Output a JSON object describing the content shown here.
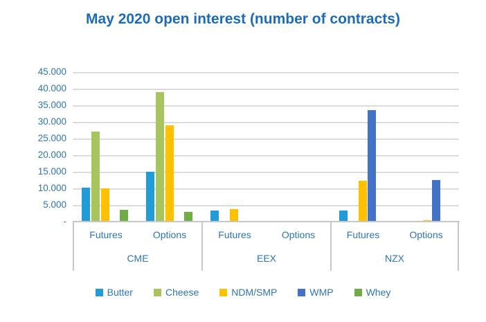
{
  "title": "May 2020 open interest (number of contracts)",
  "colors": {
    "title_text": "#1C6BB8",
    "axis_text": "#2E74B6",
    "gridline": "#DBDBDB",
    "axis_line": "#C6C6C6"
  },
  "chart_data": {
    "type": "bar",
    "title": "May 2020 open interest (number of contracts)",
    "xlabel": "",
    "ylabel": "",
    "ylim": [
      0,
      45000
    ],
    "ytick_step": 5000,
    "ytick_labels": [
      "45.000",
      "40.000",
      "35.000",
      "30.000",
      "25.000",
      "20.000",
      "15.000",
      "10.000",
      "5.000",
      "-"
    ],
    "grid": true,
    "legend_position": "bottom",
    "series": [
      {
        "name": "Butter",
        "color": "#219CD8"
      },
      {
        "name": "Cheese",
        "color": "#A8C45D"
      },
      {
        "name": "NDM/SMP",
        "color": "#FFC000"
      },
      {
        "name": "WMP",
        "color": "#4472C4"
      },
      {
        "name": "Whey",
        "color": "#70AD47"
      }
    ],
    "groups": [
      {
        "label": "CME",
        "subgroups": [
          {
            "label": "Futures",
            "values": [
              10300,
              27100,
              10100,
              0,
              3600
            ]
          },
          {
            "label": "Options",
            "values": [
              15000,
              39000,
              29000,
              0,
              3000
            ]
          }
        ]
      },
      {
        "label": "EEX",
        "subgroups": [
          {
            "label": "Futures",
            "values": [
              3300,
              0,
              3700,
              0,
              0
            ]
          },
          {
            "label": "Options",
            "values": [
              0,
              0,
              0,
              0,
              0
            ]
          }
        ]
      },
      {
        "label": "NZX",
        "subgroups": [
          {
            "label": "Futures",
            "values": [
              3300,
              0,
              12200,
              33600,
              0
            ]
          },
          {
            "label": "Options",
            "values": [
              0,
              0,
              400,
              12500,
              0
            ]
          }
        ]
      }
    ]
  }
}
